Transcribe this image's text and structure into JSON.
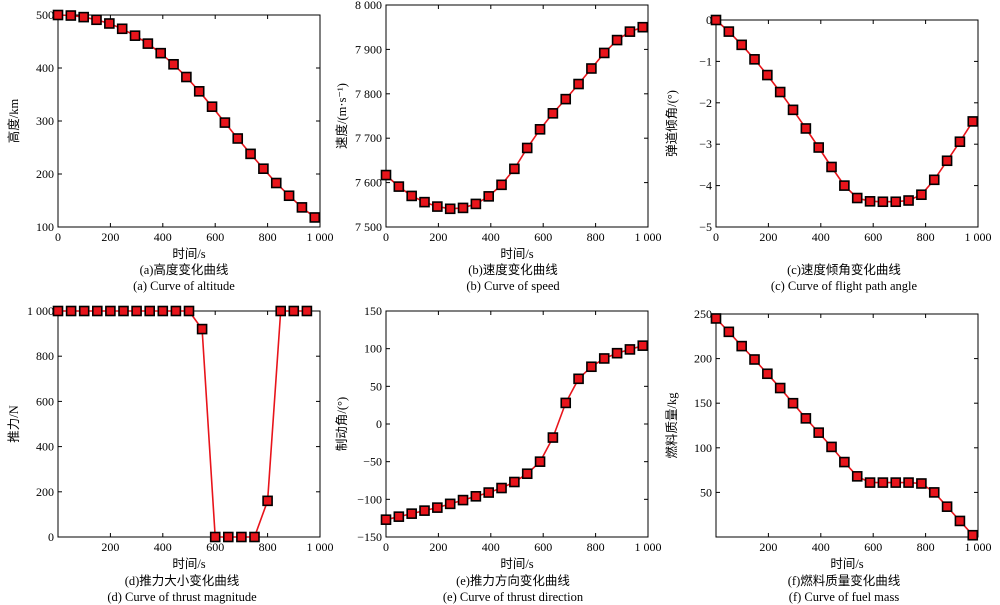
{
  "chart_data": [
    {
      "type": "line",
      "xlabel": "时间/s",
      "ylabel": "高度/km",
      "xticks": [
        0,
        200,
        400,
        600,
        800,
        1000
      ],
      "xtick_labels": [
        "0",
        "200",
        "400",
        "600",
        "800",
        "1 000"
      ],
      "yticks": [
        100,
        200,
        300,
        400,
        500
      ],
      "ytick_labels": [
        "100",
        "200",
        "300",
        "400",
        "500"
      ],
      "xlim": [
        0,
        1000
      ],
      "ylim": [
        100,
        500
      ],
      "caption_cn": "(a)高度变化曲线",
      "caption_en": "(a) Curve of altitude",
      "series": [
        {
          "x": [
            0,
            49,
            98,
            147,
            196,
            245,
            294,
            343,
            392,
            441,
            490,
            539,
            588,
            637,
            686,
            735,
            784,
            833,
            882,
            931,
            980
          ],
          "y": [
            500,
            499,
            496,
            491,
            484,
            474,
            461,
            446,
            428,
            407,
            383,
            356,
            327,
            297,
            267,
            238,
            210,
            183,
            159,
            137,
            118
          ]
        }
      ]
    },
    {
      "type": "line",
      "xlabel": "时间/s",
      "ylabel": "速度/(m·s⁻¹)",
      "xticks": [
        0,
        200,
        400,
        600,
        800,
        1000
      ],
      "xtick_labels": [
        "0",
        "200",
        "400",
        "600",
        "800",
        "1 000"
      ],
      "yticks": [
        7500,
        7600,
        7700,
        7800,
        7900,
        8000
      ],
      "ytick_labels": [
        "7 500",
        "7 600",
        "7 700",
        "7 800",
        "7 900",
        "8 000"
      ],
      "xlim": [
        0,
        1000
      ],
      "ylim": [
        7500,
        8000
      ],
      "caption_cn": "(b)速度变化曲线",
      "caption_en": "(b) Curve of speed",
      "series": [
        {
          "x": [
            0,
            49,
            98,
            147,
            196,
            245,
            294,
            343,
            392,
            441,
            490,
            539,
            588,
            637,
            686,
            735,
            784,
            833,
            882,
            931,
            980
          ],
          "y": [
            7617,
            7591,
            7570,
            7556,
            7546,
            7541,
            7543,
            7552,
            7569,
            7595,
            7631,
            7678,
            7720,
            7756,
            7788,
            7822,
            7857,
            7892,
            7921,
            7940,
            7950
          ]
        }
      ]
    },
    {
      "type": "line",
      "xlabel": "",
      "ylabel": "弹道倾角/(°)",
      "xticks": [
        0,
        200,
        400,
        600,
        800,
        1000
      ],
      "xtick_labels": [
        "0",
        "200",
        "400",
        "600",
        "800",
        "1 000"
      ],
      "yticks": [
        -5,
        -4,
        -3,
        -2,
        -1,
        0
      ],
      "ytick_labels": [
        "−5",
        "−4",
        "−3",
        "−2",
        "−1",
        "0"
      ],
      "xlim": [
        0,
        1000
      ],
      "ylim": [
        -5,
        0
      ],
      "caption_cn": "(c)速度倾角变化曲线",
      "caption_en": "(c) Curve of flight path angle",
      "series": [
        {
          "x": [
            0,
            49,
            98,
            147,
            196,
            245,
            294,
            343,
            392,
            441,
            490,
            539,
            588,
            637,
            686,
            735,
            784,
            833,
            882,
            931,
            980
          ],
          "y": [
            0,
            -0.28,
            -0.6,
            -0.95,
            -1.33,
            -1.74,
            -2.17,
            -2.62,
            -3.08,
            -3.55,
            -4.0,
            -4.3,
            -4.38,
            -4.39,
            -4.39,
            -4.36,
            -4.22,
            -3.86,
            -3.4,
            -2.94,
            -2.45
          ]
        }
      ]
    },
    {
      "type": "line",
      "xlabel": "时间/s",
      "ylabel": "推力/N",
      "xticks": [
        200,
        400,
        600,
        800,
        1000
      ],
      "xtick_labels": [
        "200",
        "400",
        "600",
        "800",
        "1 000"
      ],
      "yticks": [
        0,
        200,
        400,
        600,
        800,
        1000
      ],
      "ytick_labels": [
        "0",
        "200",
        "400",
        "600",
        "800",
        "1 000"
      ],
      "xlim": [
        0,
        1000
      ],
      "ylim": [
        0,
        1000
      ],
      "caption_cn": "(d)推力大小变化曲线",
      "caption_en": "(d) Curve of thrust magnitude",
      "series": [
        {
          "x": [
            0,
            50,
            100,
            150,
            200,
            250,
            300,
            350,
            400,
            450,
            500,
            550,
            600,
            650,
            700,
            750,
            800,
            850,
            900,
            950
          ],
          "y": [
            1000,
            1000,
            1000,
            1000,
            1000,
            1000,
            1000,
            1000,
            1000,
            1000,
            1000,
            920,
            0,
            0,
            0,
            0,
            160,
            1000,
            1000,
            1000
          ]
        }
      ]
    },
    {
      "type": "line",
      "xlabel": "时间/s",
      "ylabel": "制动角/(°)",
      "xticks": [
        0,
        200,
        400,
        600,
        800,
        1000
      ],
      "xtick_labels": [
        "0",
        "200",
        "400",
        "600",
        "800",
        "1 000"
      ],
      "yticks": [
        -150,
        -100,
        -50,
        0,
        50,
        100,
        150
      ],
      "ytick_labels": [
        "−150",
        "−100",
        "−50",
        "0",
        "50",
        "100",
        "150"
      ],
      "xlim": [
        0,
        1000
      ],
      "ylim": [
        -150,
        150
      ],
      "caption_cn": "(e)推力方向变化曲线",
      "caption_en": "(e) Curve of thrust direction",
      "series": [
        {
          "x": [
            0,
            49,
            98,
            147,
            196,
            245,
            294,
            343,
            392,
            441,
            490,
            539,
            588,
            637,
            686,
            735,
            784,
            833,
            882,
            931,
            980
          ],
          "y": [
            -127,
            -123,
            -119,
            -115,
            -111,
            -106,
            -101,
            -96,
            -91,
            -85,
            -77,
            -66,
            -50,
            -18,
            28,
            60,
            76,
            87,
            94,
            99,
            104
          ]
        }
      ]
    },
    {
      "type": "line",
      "xlabel": "时间/s",
      "ylabel": "燃料质量/kg",
      "xticks": [
        200,
        400,
        600,
        800,
        1000
      ],
      "xtick_labels": [
        "200",
        "400",
        "600",
        "800",
        "1 000"
      ],
      "yticks": [
        50,
        100,
        150,
        200,
        250
      ],
      "ytick_labels": [
        "50",
        "100",
        "150",
        "200",
        "250"
      ],
      "xlim": [
        0,
        1000
      ],
      "ylim": [
        0,
        250
      ],
      "caption_cn": "(f)燃料质量变化曲线",
      "caption_en": "(f) Curve of fuel mass",
      "series": [
        {
          "x": [
            0,
            49,
            98,
            147,
            196,
            245,
            294,
            343,
            392,
            441,
            490,
            539,
            588,
            637,
            686,
            735,
            784,
            833,
            882,
            931,
            980
          ],
          "y": [
            245,
            230,
            214,
            199,
            183,
            167,
            150,
            133,
            117,
            101,
            84,
            68,
            61,
            61,
            61,
            61,
            60,
            50,
            34,
            18,
            2
          ]
        }
      ]
    }
  ]
}
